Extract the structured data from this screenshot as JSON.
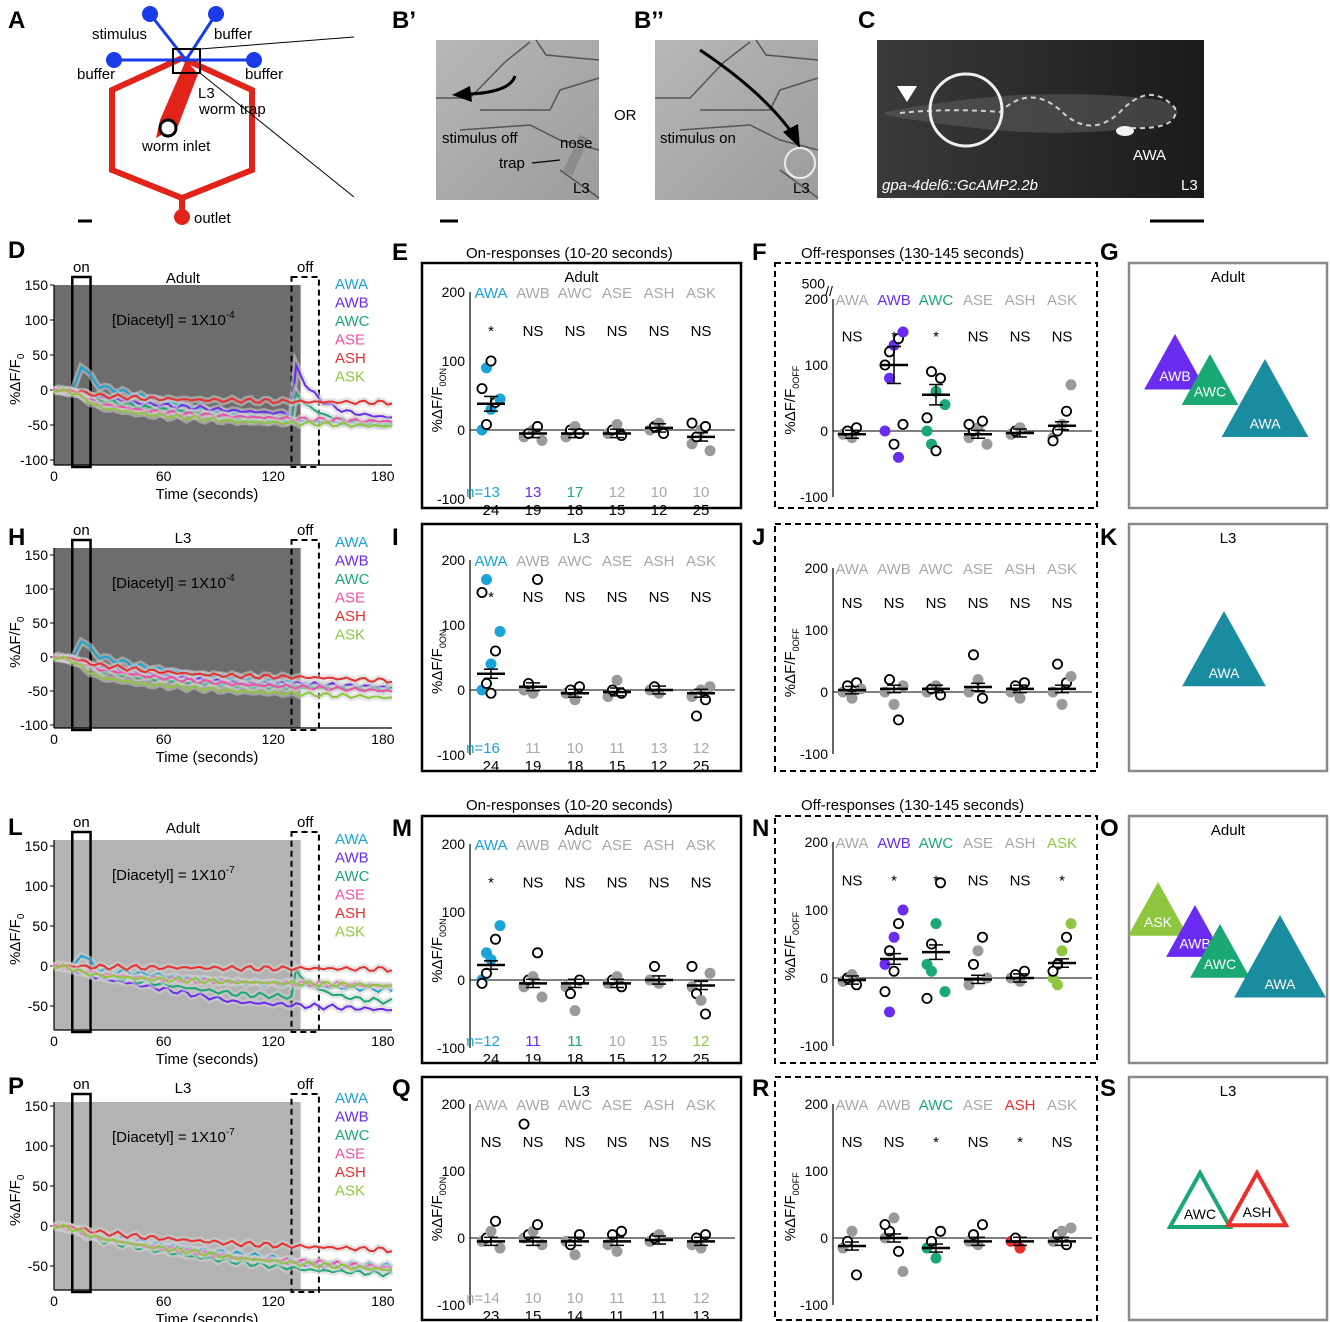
{
  "colors": {
    "AWA": "#1aa3d6",
    "AWB": "#6a2cf0",
    "AWC": "#1aa874",
    "ASE": "#ee4fa7",
    "ASH": "#e8302f",
    "ASK": "#8fc63f",
    "gray": "#a8a8a8",
    "darkgray": "#666666",
    "chip_red": "#e2231a",
    "chip_blue": "#1c3be8",
    "tri_AWA": "#1a8ca0",
    "tri_AWB": "#6a2cf0",
    "tri_AWC": "#1aa874",
    "tri_ASK": "#8fc63f",
    "tri_ASH": "#e8302f"
  },
  "panel_a": {
    "letter": "A",
    "labels": {
      "stimulus": "stimulus",
      "buffer_top": "buffer",
      "buffer_left": "buffer",
      "buffer_right": "buffer",
      "l3": "L3",
      "worm_trap": "worm trap",
      "worm_inlet": "worm inlet",
      "outlet": "outlet"
    }
  },
  "panel_b1": {
    "letter": "B’",
    "stimulus": "stimulus off",
    "nose": "nose",
    "trap": "trap",
    "stage": "L3"
  },
  "panel_b2": {
    "letter": "B’’",
    "stimulus": "stimulus on",
    "stage": "L3"
  },
  "or_text": "OR",
  "panel_c": {
    "letter": "C",
    "caption": "gpa-4del6::GcAMP2.2b",
    "neuron": "AWA",
    "stage": "L3"
  },
  "headers": {
    "E": "On-responses (10-20 seconds)",
    "F": "Off-responses (130-145 seconds)",
    "M": "On-responses (10-20 seconds)",
    "N": "Off-responses (130-145 seconds)"
  },
  "trace_common": {
    "ylabel": "%ΔF/F",
    "ylabel_sub": "0",
    "xlabel": "Time (seconds)",
    "on": "on",
    "off": "off",
    "neurons": [
      "AWA",
      "AWB",
      "AWC",
      "ASE",
      "ASH",
      "ASK"
    ]
  },
  "strip_common": {
    "neurons": [
      "AWA",
      "AWB",
      "AWC",
      "ASE",
      "ASH",
      "ASK"
    ],
    "ylabel_on": "%ΔF/F",
    "ylabel_on_sub": "0ON",
    "ylabel_off": "%ΔF/F",
    "ylabel_off_sub": "0OFF",
    "break_label": "500"
  },
  "traces": {
    "D": {
      "letter": "D",
      "stage": "Adult",
      "conc": "[Diacetyl] = 1X10",
      "exp": "-4",
      "shade": "#6d6d6d",
      "yticks": [
        "150",
        "100",
        "50",
        "0",
        "-50",
        "-100"
      ],
      "xticks": [
        "0",
        "60",
        "120",
        "180"
      ]
    },
    "H": {
      "letter": "H",
      "stage": "L3",
      "conc": "[Diacetyl] = 1X10",
      "exp": "-4",
      "shade": "#6d6d6d",
      "yticks": [
        "150",
        "100",
        "50",
        "0",
        "-50",
        "-100"
      ],
      "xticks": [
        "0",
        "60",
        "120",
        "180"
      ]
    },
    "L": {
      "letter": "L",
      "stage": "Adult",
      "conc": "[Diacetyl] = 1X10",
      "exp": "-7",
      "shade": "#b3b3b3",
      "yticks": [
        "150",
        "100",
        "50",
        "0",
        "-50"
      ],
      "xticks": [
        "0",
        "60",
        "120",
        "180"
      ]
    },
    "P": {
      "letter": "P",
      "stage": "L3",
      "conc": "[Diacetyl] = 1X10",
      "exp": "-7",
      "shade": "#b3b3b3",
      "yticks": [
        "150",
        "100",
        "50",
        "0",
        "-50"
      ],
      "xticks": [
        "0",
        "60",
        "120",
        "180"
      ]
    }
  },
  "strips": {
    "E": {
      "letter": "E",
      "stage": "Adult",
      "yticks": [
        "200",
        "100",
        "0",
        "-100"
      ],
      "dashed": false,
      "name_colors": [
        "AWA",
        "gray",
        "gray",
        "gray",
        "gray",
        "gray"
      ],
      "sig": [
        "*",
        "NS",
        "NS",
        "NS",
        "NS",
        "NS"
      ],
      "n_top": [
        "n=13",
        "13",
        "17",
        "12",
        "10",
        "10"
      ],
      "n_top_colors": [
        "AWA",
        "AWB",
        "AWC",
        "gray",
        "gray",
        "gray"
      ],
      "n_bot": [
        "24",
        "19",
        "18",
        "15",
        "12",
        "25"
      ]
    },
    "F": {
      "letter": "F",
      "stage": "",
      "yticks": [
        "200",
        "100",
        "0",
        "-100"
      ],
      "dashed": true,
      "name_colors": [
        "gray",
        "AWB",
        "AWC",
        "gray",
        "gray",
        "gray"
      ],
      "sig": [
        "NS",
        "*",
        "*",
        "NS",
        "NS",
        "NS"
      ],
      "n_top": [],
      "n_bot": []
    },
    "I": {
      "letter": "I",
      "stage": "L3",
      "yticks": [
        "200",
        "100",
        "0",
        "-100"
      ],
      "dashed": false,
      "name_colors": [
        "AWA",
        "gray",
        "gray",
        "gray",
        "gray",
        "gray"
      ],
      "sig": [
        "*",
        "NS",
        "NS",
        "NS",
        "NS",
        "NS"
      ],
      "n_top": [
        "n=16",
        "11",
        "10",
        "11",
        "13",
        "12"
      ],
      "n_top_colors": [
        "AWA",
        "gray",
        "gray",
        "gray",
        "gray",
        "gray"
      ],
      "n_bot": [
        "24",
        "19",
        "18",
        "15",
        "12",
        "25"
      ]
    },
    "J": {
      "letter": "J",
      "stage": "",
      "yticks": [
        "200",
        "100",
        "0",
        "-100"
      ],
      "dashed": true,
      "name_colors": [
        "gray",
        "gray",
        "gray",
        "gray",
        "gray",
        "gray"
      ],
      "sig": [
        "NS",
        "NS",
        "NS",
        "NS",
        "NS",
        "NS"
      ],
      "n_top": [],
      "n_bot": []
    },
    "M": {
      "letter": "M",
      "stage": "Adult",
      "yticks": [
        "200",
        "100",
        "0",
        "-100"
      ],
      "dashed": false,
      "name_colors": [
        "AWA",
        "gray",
        "gray",
        "gray",
        "gray",
        "gray"
      ],
      "sig": [
        "*",
        "NS",
        "NS",
        "NS",
        "NS",
        "NS"
      ],
      "n_top": [
        "n=12",
        "11",
        "11",
        "10",
        "15",
        "12"
      ],
      "n_top_colors": [
        "AWA",
        "AWB",
        "AWC",
        "gray",
        "gray",
        "ASK"
      ],
      "n_bot": [
        "24",
        "19",
        "18",
        "15",
        "12",
        "25"
      ]
    },
    "N": {
      "letter": "N",
      "stage": "",
      "yticks": [
        "200",
        "100",
        "0",
        "-100"
      ],
      "dashed": true,
      "name_colors": [
        "gray",
        "AWB",
        "AWC",
        "gray",
        "gray",
        "ASK"
      ],
      "sig": [
        "NS",
        "*",
        "*",
        "NS",
        "NS",
        "*"
      ],
      "n_top": [],
      "n_bot": []
    },
    "Q": {
      "letter": "Q",
      "stage": "L3",
      "yticks": [
        "200",
        "100",
        "0",
        "-100"
      ],
      "dashed": false,
      "name_colors": [
        "gray",
        "gray",
        "gray",
        "gray",
        "gray",
        "gray"
      ],
      "sig": [
        "NS",
        "NS",
        "NS",
        "NS",
        "NS",
        "NS"
      ],
      "n_top": [
        "n=14",
        "10",
        "10",
        "11",
        "11",
        "12"
      ],
      "n_top_colors": [
        "gray",
        "gray",
        "gray",
        "gray",
        "gray",
        "gray"
      ],
      "n_bot": [
        "23",
        "15",
        "14",
        "11",
        "11",
        "13"
      ]
    },
    "R": {
      "letter": "R",
      "stage": "",
      "yticks": [
        "200",
        "100",
        "0",
        "-100"
      ],
      "dashed": true,
      "name_colors": [
        "gray",
        "gray",
        "AWC",
        "gray",
        "ASH",
        "gray"
      ],
      "sig": [
        "NS",
        "NS",
        "*",
        "NS",
        "*",
        "NS"
      ],
      "n_top": [],
      "n_bot": []
    }
  },
  "summaries": {
    "G": {
      "letter": "G",
      "stage": "Adult"
    },
    "K": {
      "letter": "K",
      "stage": "L3"
    },
    "O": {
      "letter": "O",
      "stage": "Adult"
    },
    "S": {
      "letter": "S",
      "stage": "L3"
    }
  },
  "triangles": {
    "G": [
      {
        "label": "AWB",
        "color": "AWB"
      },
      {
        "label": "AWC",
        "color": "AWC"
      },
      {
        "label": "AWA",
        "color": "AWA"
      }
    ],
    "K": [
      {
        "label": "AWA",
        "color": "AWA"
      }
    ],
    "O": [
      {
        "label": "ASK",
        "color": "ASK"
      },
      {
        "label": "AWB",
        "color": "AWB"
      },
      {
        "label": "AWC",
        "color": "AWC"
      },
      {
        "label": "AWA",
        "color": "AWA"
      }
    ],
    "S": [
      {
        "label": "AWC",
        "color": "AWC",
        "outline": true
      },
      {
        "label": "ASH",
        "color": "ASH",
        "outline": true
      }
    ]
  }
}
